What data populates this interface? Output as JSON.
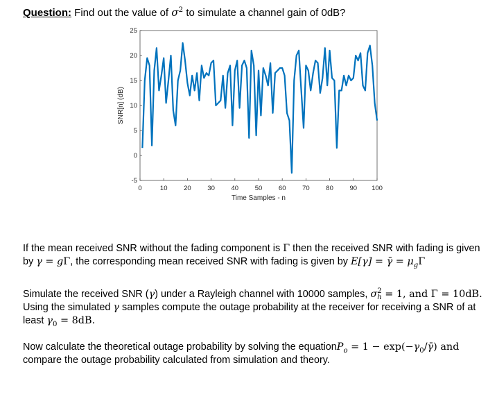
{
  "question": {
    "label": "Question:",
    "text_before": " Find out the value of ",
    "sigma": "σ",
    "sigma_sup": "2",
    "text_after": " to simulate a channel gain of 0dB?"
  },
  "chart_data": {
    "type": "line",
    "title": "",
    "xlabel": "Time Samples - n",
    "ylabel": "SNR[n] (dB)",
    "xlim": [
      0,
      100
    ],
    "ylim": [
      -5,
      25
    ],
    "xticks": [
      0,
      10,
      20,
      30,
      40,
      50,
      60,
      70,
      80,
      90,
      100
    ],
    "yticks": [
      -5,
      0,
      5,
      10,
      15,
      20,
      25
    ],
    "grid": false,
    "line_color": "#0072bd",
    "series": [
      {
        "x": [
          1,
          2,
          3,
          4,
          5,
          6,
          7,
          8,
          9,
          10,
          11,
          12,
          13,
          14,
          15,
          16,
          17,
          18,
          19,
          20,
          21,
          22,
          23,
          24,
          25,
          26,
          27,
          28,
          29,
          30,
          31,
          32,
          33,
          34,
          35,
          36,
          37,
          38,
          39,
          40,
          41,
          42,
          43,
          44,
          45,
          46,
          47,
          48,
          49,
          50,
          51,
          52,
          53,
          54,
          55,
          56,
          57,
          58,
          59,
          60,
          61,
          62,
          63,
          64,
          65,
          66,
          67,
          68,
          69,
          70,
          71,
          72,
          73,
          74,
          75,
          76,
          77,
          78,
          79,
          80,
          81,
          82,
          83,
          84,
          85,
          86,
          87,
          88,
          89,
          90,
          91,
          92,
          93,
          94,
          95,
          96,
          97,
          98,
          99,
          100
        ],
        "values": [
          1.5,
          15,
          19.5,
          18,
          2,
          17,
          21.5,
          13,
          16,
          19.5,
          10.5,
          15,
          20,
          9,
          6,
          15,
          17,
          22.5,
          19,
          14.5,
          12,
          16,
          13,
          16.5,
          11,
          18,
          15.5,
          16.5,
          16,
          18.5,
          19,
          10,
          10.5,
          11,
          16,
          9.5,
          16.5,
          18,
          6,
          17,
          19,
          9.5,
          18,
          19,
          17.5,
          3.5,
          21,
          18,
          4,
          17,
          8,
          17.5,
          16,
          14,
          18.5,
          8.5,
          16.5,
          17,
          17.5,
          17.5,
          16,
          8.5,
          7,
          -3.5,
          15,
          20,
          21,
          13,
          5.5,
          18,
          17,
          13,
          16.5,
          19,
          18.5,
          12.5,
          15.5,
          21.5,
          14,
          21,
          15.5,
          15,
          1.5,
          13,
          13,
          16,
          14,
          16,
          15,
          15.5,
          20,
          19,
          20.5,
          14,
          13,
          20.5,
          22,
          18,
          10.5,
          7
        ]
      }
    ]
  },
  "paragraph1": {
    "line1_a": "If the mean received SNR without the fading component is ",
    "Gamma": "Γ",
    "line1_b": " then the received SNR with fading is given",
    "line2_a": "by ",
    "gamma": "γ",
    "eq1": " = ",
    "g": "g",
    "line2_b": ", the corresponding mean received SNR with fading is given by ",
    "E": "E",
    "eq2": "[γ] = γ̄ = ",
    "mu": "μ",
    "mu_sub": "g"
  },
  "paragraph2": {
    "line1_a": "Simulate the received SNR (",
    "gamma": "γ",
    "line1_b": ") under a Rayleigh channel with 10000 samples, ",
    "sigma": "σ",
    "sigma_sub": "h",
    "sigma_sup": "2",
    "line1_c": " = 1, and ",
    "Gamma": "Γ",
    "line1_d": " = 10dB.",
    "line2_a": "Using the simulated ",
    "line2_b": " samples compute the outage probability at the receiver for receiving a SNR of at",
    "line3_a": "least ",
    "gamma0": "γ",
    "gamma0_sub": "0",
    "line3_b": " = 8dB."
  },
  "paragraph3": {
    "line1_a": "Now calculate the theoretical outage probability by solving the equation",
    "P": "P",
    "P_sub": "o",
    "line1_b": " = 1 − exp(−",
    "g0": "γ",
    "g0_sub": "0",
    "slash": "/",
    "gbar": "γ̄",
    "line1_c": ") and",
    "line2": "compare the outage probability calculated from simulation and theory."
  }
}
